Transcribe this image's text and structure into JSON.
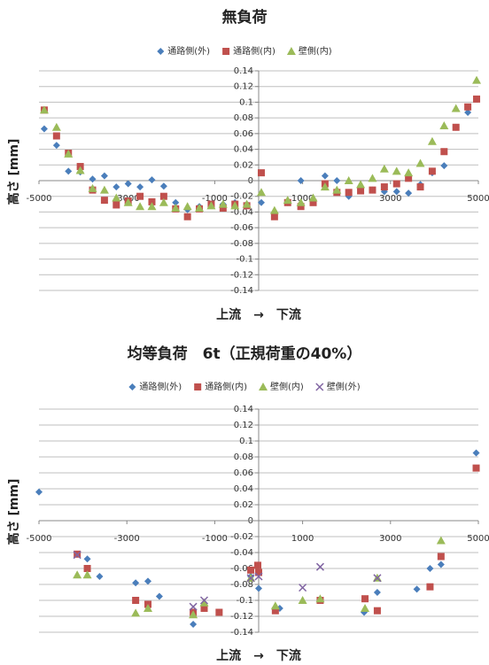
{
  "chart_data": [
    {
      "type": "scatter",
      "title": "無負荷",
      "xlabel": "上流　→　下流",
      "ylabel": "高さ [mm]",
      "xlim": [
        -5000,
        5000
      ],
      "xticks": [
        -5000,
        -3000,
        -1000,
        1000,
        3000,
        5000
      ],
      "ylim": [
        -0.14,
        0.14
      ],
      "yticks": [
        0.14,
        0.12,
        0.1,
        0.08,
        0.06,
        0.04,
        0.02,
        0,
        -0.02,
        -0.04,
        -0.06,
        -0.08,
        -0.1,
        -0.12,
        -0.14
      ],
      "grid": true,
      "legend": "top",
      "x": [
        -4880,
        -4600,
        -4330,
        -4060,
        -3780,
        -3510,
        -3240,
        -2970,
        -2700,
        -2430,
        -2160,
        -1890,
        -1620,
        -1350,
        -1080,
        -810,
        -540,
        -270,
        60,
        360,
        660,
        960,
        1240,
        1510,
        1780,
        2050,
        2320,
        2590,
        2860,
        3140,
        3410,
        3680,
        3950,
        4220,
        4490,
        4760,
        4960
      ],
      "series": [
        {
          "name": "通路側(外)",
          "color": "#4a7ebb",
          "marker": "diamond",
          "values": [
            0.066,
            0.045,
            0.012,
            0.011,
            0.002,
            0.006,
            -0.008,
            -0.004,
            -0.008,
            0.001,
            -0.007,
            -0.028,
            -0.037,
            -0.033,
            -0.03,
            -0.03,
            -0.028,
            -0.03,
            -0.028,
            -0.042,
            -0.028,
            0,
            -0.025,
            0.006,
            0,
            -0.02,
            -0.012,
            -0.012,
            -0.014,
            -0.014,
            -0.016,
            -0.005,
            0.01,
            0.019,
            0.068,
            0.087,
            null
          ]
        },
        {
          "name": "通路側(内)",
          "color": "#c0504d",
          "marker": "square",
          "values": [
            0.09,
            0.057,
            0.035,
            0.018,
            -0.012,
            -0.025,
            -0.031,
            -0.026,
            -0.02,
            -0.027,
            -0.02,
            -0.036,
            -0.046,
            -0.036,
            -0.03,
            -0.035,
            -0.03,
            -0.032,
            0.01,
            -0.046,
            -0.028,
            -0.033,
            -0.028,
            -0.004,
            -0.015,
            -0.015,
            -0.013,
            -0.012,
            -0.008,
            -0.004,
            0.003,
            -0.008,
            0.012,
            0.037,
            0.068,
            0.094,
            0.104
          ]
        },
        {
          "name": "壁側(内)",
          "color": "#9bbb59",
          "marker": "triangle",
          "values": [
            0.09,
            0.068,
            0.034,
            0.013,
            -0.01,
            -0.012,
            -0.022,
            -0.028,
            -0.033,
            -0.033,
            -0.028,
            -0.035,
            -0.033,
            -0.035,
            -0.032,
            -0.03,
            -0.032,
            -0.03,
            -0.015,
            -0.038,
            -0.025,
            -0.028,
            -0.022,
            -0.008,
            -0.012,
            0,
            -0.005,
            0.003,
            0.015,
            0.012,
            0.01,
            0.022,
            0.05,
            0.07,
            0.092,
            null,
            0.128
          ]
        }
      ]
    },
    {
      "type": "scatter",
      "title": "均等負荷　6t（正規荷重の40%）",
      "xlabel": "上流　→　下流",
      "ylabel": "高さ [mm]",
      "xlim": [
        -5000,
        5000
      ],
      "xticks": [
        -5000,
        -3000,
        -1000,
        1000,
        3000,
        5000
      ],
      "ylim": [
        -0.14,
        0.14
      ],
      "yticks": [
        0.14,
        0.12,
        0.1,
        0.08,
        0.06,
        0.04,
        0.02,
        0,
        -0.02,
        -0.04,
        -0.06,
        -0.08,
        -0.1,
        -0.12,
        -0.14
      ],
      "grid": true,
      "legend": "top",
      "series": [
        {
          "name": "通路側(外)",
          "color": "#4a7ebb",
          "marker": "diamond",
          "x": [
            -5000,
            -3900,
            -3620,
            -2800,
            -2520,
            -2260,
            -1490,
            -1240,
            -180,
            0,
            480,
            1400,
            2400,
            2700,
            3600,
            3900,
            4150,
            4950
          ],
          "values": [
            0.036,
            -0.048,
            -0.07,
            -0.078,
            -0.076,
            -0.095,
            -0.13,
            -0.11,
            -0.07,
            -0.085,
            -0.11,
            -0.1,
            -0.115,
            -0.09,
            -0.086,
            -0.06,
            -0.055,
            0.085
          ]
        },
        {
          "name": "通路側(内)",
          "color": "#c0504d",
          "marker": "square",
          "x": [
            -4130,
            -3900,
            -2800,
            -2520,
            -1490,
            -1240,
            -900,
            -180,
            -20,
            0,
            380,
            1400,
            2420,
            2700,
            3900,
            4150,
            4950
          ],
          "values": [
            -0.042,
            -0.06,
            -0.1,
            -0.105,
            -0.115,
            -0.11,
            -0.115,
            -0.062,
            -0.056,
            -0.065,
            -0.113,
            -0.1,
            -0.098,
            -0.113,
            -0.083,
            -0.045,
            0.066
          ]
        },
        {
          "name": "壁側(内)",
          "color": "#9bbb59",
          "marker": "triangle",
          "x": [
            -4130,
            -3900,
            -2800,
            -2520,
            -1490,
            -1240,
            -180,
            380,
            1000,
            1400,
            2420,
            2700,
            4150
          ],
          "values": [
            -0.068,
            -0.068,
            -0.116,
            -0.11,
            -0.118,
            -0.103,
            -0.072,
            -0.107,
            -0.1,
            -0.098,
            -0.11,
            -0.072,
            -0.025
          ]
        },
        {
          "name": "壁側(外)",
          "color": "#8064a2",
          "marker": "x",
          "x": [
            -4130,
            -1490,
            -1240,
            -180,
            0,
            1000,
            1400,
            2700
          ],
          "values": [
            -0.043,
            -0.108,
            -0.1,
            -0.072,
            -0.07,
            -0.084,
            -0.058,
            -0.072
          ]
        }
      ]
    }
  ]
}
